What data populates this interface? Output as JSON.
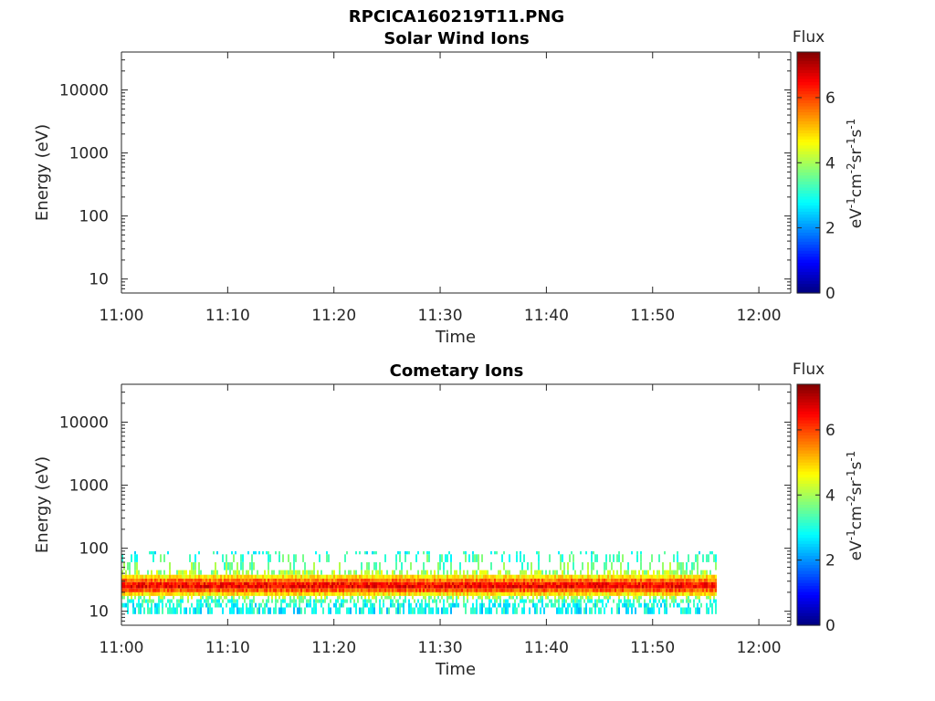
{
  "figure_title": "RPCICA160219T11.PNG",
  "colorscale": [
    "#00007f",
    "#0000ff",
    "#007fff",
    "#00ffff",
    "#7fff7f",
    "#ffff00",
    "#ff7f00",
    "#ff0000",
    "#7f0000"
  ],
  "chart_data": [
    {
      "type": "heatmap",
      "title": "Solar Wind Ions",
      "xlabel": "Time",
      "ylabel": "Energy (eV)",
      "y_scale": "log",
      "x_ticks": [
        "11:00",
        "11:10",
        "11:20",
        "11:30",
        "11:40",
        "11:50",
        "12:00"
      ],
      "y_ticks": [
        "10",
        "100",
        "1000",
        "10000"
      ],
      "xlim": [
        "11:00",
        "12:03"
      ],
      "ylim": [
        6,
        40000
      ],
      "colorbar": {
        "label": "Flux",
        "units": "eV-1cm-2sr-1s-1",
        "ticks": [
          "0",
          "2",
          "4",
          "6"
        ],
        "range": [
          0,
          7.4
        ]
      },
      "data": "empty"
    },
    {
      "type": "heatmap",
      "title": "Cometary Ions",
      "xlabel": "Time",
      "ylabel": "Energy (eV)",
      "y_scale": "log",
      "x_ticks": [
        "11:00",
        "11:10",
        "11:20",
        "11:30",
        "11:40",
        "11:50",
        "12:00"
      ],
      "y_ticks": [
        "10",
        "100",
        "1000",
        "10000"
      ],
      "xlim": [
        "11:00",
        "12:03"
      ],
      "ylim": [
        6,
        40000
      ],
      "colorbar": {
        "label": "Flux",
        "units": "eV-1cm-2sr-1s-1",
        "ticks": [
          "0",
          "2",
          "4",
          "6"
        ],
        "range": [
          0,
          7.4
        ]
      },
      "data_extent": {
        "time": [
          "11:00",
          "11:56"
        ]
      },
      "band": [
        {
          "energy": 80,
          "flux": 3.0
        },
        {
          "energy": 60,
          "flux": 3.3
        },
        {
          "energy": 45,
          "flux": 3.6
        },
        {
          "energy": 38,
          "flux": 4.0
        },
        {
          "energy": 33,
          "flux": 4.8
        },
        {
          "energy": 29,
          "flux": 5.6
        },
        {
          "energy": 26,
          "flux": 6.3
        },
        {
          "energy": 23,
          "flux": 6.5
        },
        {
          "energy": 20,
          "flux": 5.8
        },
        {
          "energy": 17.5,
          "flux": 4.8
        },
        {
          "energy": 15.5,
          "flux": 3.9
        },
        {
          "energy": 13.5,
          "flux": 3.2
        },
        {
          "energy": 11.5,
          "flux": 2.9
        },
        {
          "energy": 9,
          "flux": 2.8
        }
      ]
    }
  ]
}
